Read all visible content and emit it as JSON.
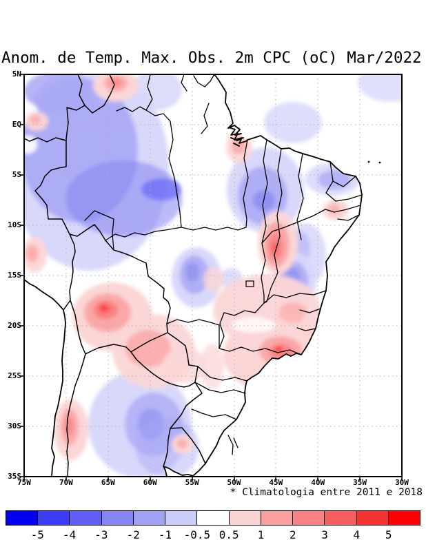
{
  "title": "Anom. de Temp. Max. Obs. 2m CPC (oC) Mar/2022",
  "footnote": "* Climatologia entre 2011 e 2018",
  "map": {
    "lat_labels": [
      "5N",
      "EQ",
      "5S",
      "10S",
      "15S",
      "20S",
      "25S",
      "30S",
      "35S"
    ],
    "lon_labels": [
      "75W",
      "70W",
      "65W",
      "60W",
      "55W",
      "50W",
      "45W",
      "40W",
      "35W",
      "30W"
    ]
  },
  "colorbar": {
    "tick_labels": [
      "-5",
      "-4",
      "-3",
      "-2",
      "-1",
      "-0.5",
      "0.5",
      "1",
      "2",
      "3",
      "4",
      "5"
    ],
    "colors": [
      "#0000f5",
      "#3c3cf6",
      "#6060f8",
      "#8484f2",
      "#a2a2f4",
      "#ccccf8",
      "#ffffff",
      "#fbd2d2",
      "#fb9e9e",
      "#fa8282",
      "#f85e5e",
      "#f53232",
      "#fe0000"
    ]
  },
  "palette": {
    "b05": "#d8d8fb",
    "b1": "#a8a8f5",
    "b2": "#8484f0",
    "b3": "#5c5cf8",
    "b5": "#1212f0",
    "r05": "#fbd6d6",
    "r1": "#fba2a2",
    "r2": "#fa8080",
    "r3": "#f85c5c",
    "r5": "#fd1414",
    "white": "#ffffff",
    "grid": "#b0b0b0",
    "line": "#000000"
  },
  "chart_data": {
    "type": "map",
    "variable": "Anomalia de Temperatura Maxima Observada 2m (CPC)",
    "units": "oC",
    "period": "Mar/2022",
    "climatology": "2011 a 2018",
    "region": "Brasil / America do Sul",
    "lat_range": [
      "5N",
      "35S"
    ],
    "lon_range": [
      "75W",
      "30W"
    ],
    "scale_breaks": [
      -5,
      -4,
      -3,
      -2,
      -1,
      -0.5,
      0.5,
      1,
      2,
      3,
      4,
      5
    ],
    "legend_position": "bottom"
  }
}
